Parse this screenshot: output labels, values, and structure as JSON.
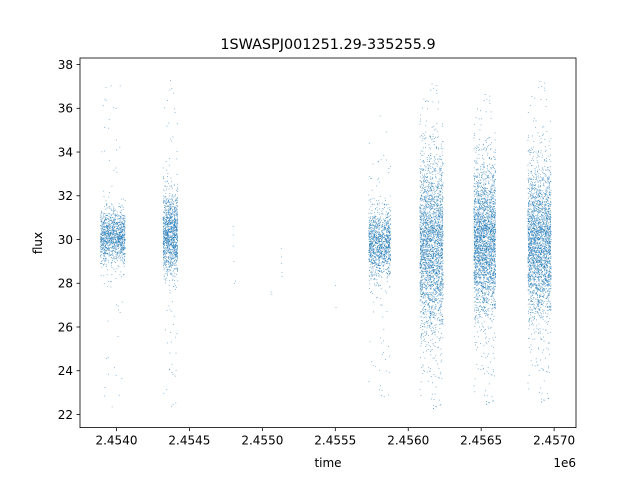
{
  "chart_data": {
    "type": "scatter",
    "title": "1SWASPJ001251.29-335255.9",
    "xlabel": "time",
    "ylabel": "flux",
    "x_offset_label": "1e6",
    "xlim": [
      2453750,
      2457150
    ],
    "ylim": [
      21.4,
      38.3
    ],
    "x_ticks": [
      2454000,
      2454500,
      2455000,
      2455500,
      2456000,
      2456500,
      2457000
    ],
    "x_tick_labels": [
      "2.4540",
      "2.4545",
      "2.4550",
      "2.4555",
      "2.4560",
      "2.4565",
      "2.4570"
    ],
    "y_ticks": [
      22,
      24,
      26,
      28,
      30,
      32,
      34,
      36,
      38
    ],
    "y_tick_labels": [
      "22",
      "24",
      "26",
      "28",
      "30",
      "32",
      "34",
      "36",
      "38"
    ],
    "grid": false,
    "marker_color": "#1f77b4",
    "series": [
      {
        "seasons": [
          {
            "x_range": [
              2453890,
              2454060
            ],
            "center": 30.1,
            "spread": 0.6,
            "outlier_range": [
              22.3,
              37.4
            ],
            "density": "medium"
          },
          {
            "x_range": [
              2454320,
              2454420
            ],
            "center": 30.2,
            "spread": 0.9,
            "outlier_range": [
              22.2,
              37.3
            ],
            "density": "medium"
          },
          {
            "x_range": [
              2455730,
              2455880
            ],
            "center": 29.8,
            "spread": 0.8,
            "outlier_range": [
              22.6,
              35.8
            ],
            "density": "medium"
          },
          {
            "x_range": [
              2456080,
              2456240
            ],
            "center": 29.7,
            "spread": 2.0,
            "outlier_range": [
              22.1,
              37.3
            ],
            "density": "high"
          },
          {
            "x_range": [
              2456450,
              2456600
            ],
            "center": 29.9,
            "spread": 1.7,
            "outlier_range": [
              22.3,
              36.8
            ],
            "density": "high"
          },
          {
            "x_range": [
              2456820,
              2456980
            ],
            "center": 29.8,
            "spread": 1.7,
            "outlier_range": [
              22.4,
              37.4
            ],
            "density": "high"
          }
        ],
        "sparse_points": [
          {
            "x": 2454800,
            "y": 30.6
          },
          {
            "x": 2454800,
            "y": 30.2
          },
          {
            "x": 2454800,
            "y": 29.7
          },
          {
            "x": 2454805,
            "y": 29.0
          },
          {
            "x": 2454810,
            "y": 28.0
          },
          {
            "x": 2454815,
            "y": 28.1
          },
          {
            "x": 2455060,
            "y": 27.6
          },
          {
            "x": 2455065,
            "y": 27.5
          },
          {
            "x": 2455130,
            "y": 29.6
          },
          {
            "x": 2455130,
            "y": 29.2
          },
          {
            "x": 2455132,
            "y": 28.9
          },
          {
            "x": 2455134,
            "y": 28.5
          },
          {
            "x": 2455136,
            "y": 28.3
          },
          {
            "x": 2455500,
            "y": 27.9
          },
          {
            "x": 2455505,
            "y": 26.9
          }
        ]
      }
    ]
  }
}
